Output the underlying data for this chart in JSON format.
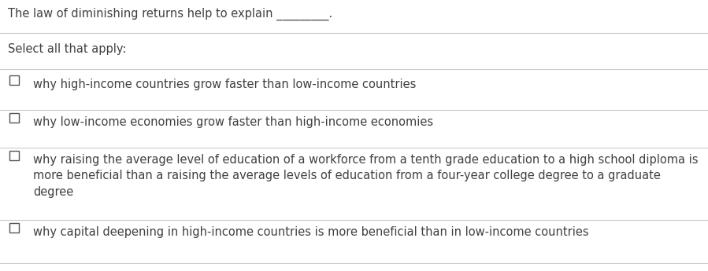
{
  "background_color": "#ffffff",
  "question_text": "The law of diminishing returns help to explain _________.",
  "instruction_text": "Select all that apply:",
  "options": [
    "why high-income countries grow faster than low-income countries",
    "why low-income economies grow faster than high-income economies",
    "why raising the average level of education of a workforce from a tenth grade education to a high school diploma is\nmore beneficial than a raising the average levels of education from a four-year college degree to a graduate\ndegree",
    "why capital deepening in high-income countries is more beneficial than in low-income countries"
  ],
  "divider_color": "#cccccc",
  "text_color": "#404040",
  "checkbox_color": "#555555",
  "font_size": 10.5,
  "question_font_size": 10.5,
  "instruction_font_size": 10.5,
  "fig_width": 8.99,
  "fig_height": 3.45,
  "dpi": 100
}
